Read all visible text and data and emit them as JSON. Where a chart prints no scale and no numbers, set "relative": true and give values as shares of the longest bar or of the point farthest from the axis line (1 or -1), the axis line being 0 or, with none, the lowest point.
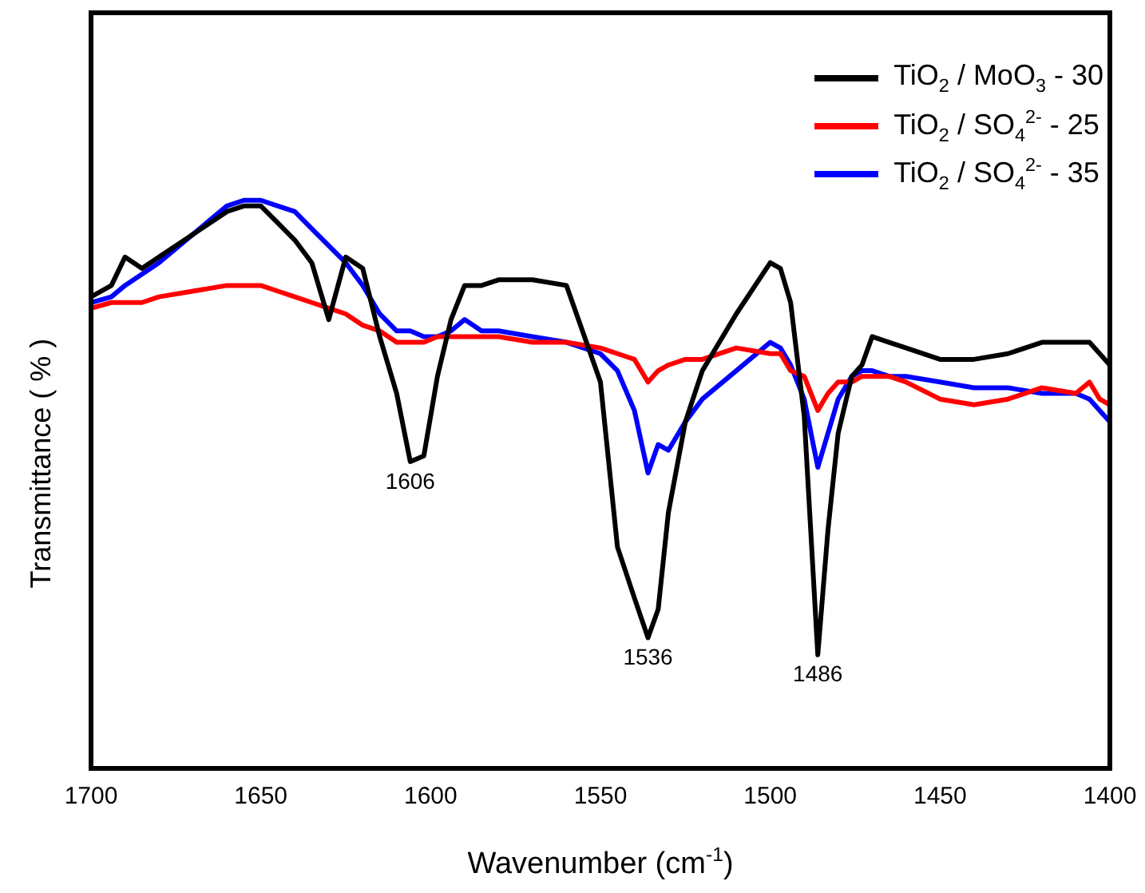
{
  "chart_data": {
    "type": "line",
    "relative": true,
    "xlabel": "Wavenumber (cm$^{-1}$)",
    "ylabel": "Transmittance ( % )",
    "x": [
      1700,
      1694,
      1690,
      1685,
      1680,
      1670,
      1660,
      1655,
      1650,
      1645,
      1640,
      1635,
      1630,
      1625,
      1620,
      1615,
      1610,
      1606,
      1602,
      1598,
      1594,
      1590,
      1585,
      1580,
      1570,
      1560,
      1550,
      1545,
      1540,
      1536,
      1533,
      1530,
      1525,
      1520,
      1510,
      1500,
      1497,
      1494,
      1490,
      1486,
      1483,
      1480,
      1476,
      1473,
      1470,
      1465,
      1460,
      1450,
      1440,
      1430,
      1420,
      1410,
      1406,
      1403,
      1400
    ],
    "xlim": [
      1700,
      1400
    ],
    "xticks": [
      1700,
      1650,
      1600,
      1550,
      1500,
      1450,
      1400
    ],
    "grid": false,
    "legend": "top right",
    "marker": "none",
    "line_style": "solid",
    "series": [
      {
        "name": "TiO$_{2}$ / MoO$_{3}$ - 30",
        "color": "#000000",
        "values": [
          0.83,
          0.85,
          0.9,
          0.88,
          0.9,
          0.94,
          0.98,
          0.99,
          0.99,
          0.96,
          0.93,
          0.89,
          0.79,
          0.9,
          0.88,
          0.76,
          0.66,
          0.54,
          0.55,
          0.69,
          0.79,
          0.85,
          0.85,
          0.86,
          0.86,
          0.85,
          0.68,
          0.39,
          0.3,
          0.23,
          0.28,
          0.45,
          0.61,
          0.7,
          0.8,
          0.89,
          0.88,
          0.82,
          0.62,
          0.2,
          0.42,
          0.59,
          0.69,
          0.71,
          0.76,
          0.75,
          0.74,
          0.72,
          0.72,
          0.73,
          0.75,
          0.75,
          0.75,
          0.73,
          0.71
        ]
      },
      {
        "name": "TiO$_{2}$ / SO$_{4}$$^{2-}$ - 25",
        "color": "#ff0000",
        "values": [
          0.81,
          0.82,
          0.82,
          0.82,
          0.83,
          0.84,
          0.85,
          0.85,
          0.85,
          0.84,
          0.83,
          0.82,
          0.81,
          0.8,
          0.78,
          0.77,
          0.75,
          0.75,
          0.75,
          0.76,
          0.76,
          0.76,
          0.76,
          0.76,
          0.75,
          0.75,
          0.74,
          0.73,
          0.72,
          0.68,
          0.7,
          0.71,
          0.72,
          0.72,
          0.74,
          0.73,
          0.73,
          0.7,
          0.69,
          0.63,
          0.66,
          0.68,
          0.68,
          0.69,
          0.69,
          0.69,
          0.68,
          0.65,
          0.64,
          0.65,
          0.67,
          0.66,
          0.68,
          0.65,
          0.64
        ]
      },
      {
        "name": "TiO$_{2}$ / SO$_{4}$$^{2-}$ - 35",
        "color": "#0000ff",
        "values": [
          0.82,
          0.83,
          0.85,
          0.87,
          0.89,
          0.94,
          0.99,
          1.0,
          1.0,
          0.99,
          0.98,
          0.95,
          0.92,
          0.89,
          0.85,
          0.8,
          0.77,
          0.77,
          0.76,
          0.76,
          0.77,
          0.79,
          0.77,
          0.77,
          0.76,
          0.75,
          0.73,
          0.7,
          0.63,
          0.52,
          0.57,
          0.56,
          0.61,
          0.65,
          0.7,
          0.75,
          0.74,
          0.71,
          0.65,
          0.53,
          0.59,
          0.65,
          0.69,
          0.7,
          0.7,
          0.69,
          0.69,
          0.68,
          0.67,
          0.67,
          0.66,
          0.66,
          0.65,
          0.63,
          0.61
        ]
      }
    ],
    "annotations": [
      {
        "text": "1606",
        "x": 1606,
        "y": 0.54
      },
      {
        "text": "1536",
        "x": 1536,
        "y": 0.23
      },
      {
        "text": "1486",
        "x": 1486,
        "y": 0.2
      }
    ]
  }
}
